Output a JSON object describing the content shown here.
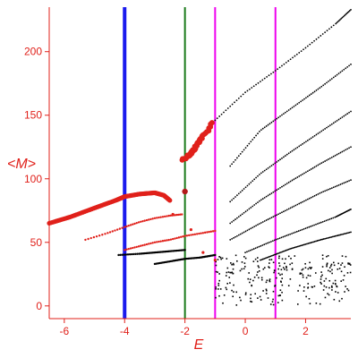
{
  "chart_data": {
    "type": "scatter",
    "title": "",
    "xlabel": "E",
    "ylabel": "<M>",
    "xlim": [
      -6.5,
      3.5
    ],
    "ylim": [
      -10,
      235
    ],
    "x_ticks": [
      -6,
      -4,
      -2,
      0,
      2
    ],
    "y_ticks": [
      0,
      50,
      100,
      150,
      200
    ],
    "x_tick_labels": [
      "-6",
      "-4",
      "-2",
      "0",
      "2"
    ],
    "y_tick_labels": [
      "0",
      "50",
      "100",
      "150",
      "200"
    ],
    "grid": false,
    "legend": "none",
    "colors": {
      "axis": "#e0201a",
      "red_points": "#e0201a",
      "black_points": "#000000",
      "line_blue": "#1a1aee",
      "line_green": "#1a7a1a",
      "line_magenta": "#ee00ee"
    },
    "vertical_lines": [
      {
        "x": -4,
        "color": "#1a1aee",
        "width": "thick"
      },
      {
        "x": -2,
        "color": "#1a7a1a",
        "width": "thin"
      },
      {
        "x": -1,
        "color": "#ee00ee",
        "width": "thin"
      },
      {
        "x": 1,
        "color": "#ee00ee",
        "width": "thin"
      }
    ],
    "series": [
      {
        "color": "#e0201a",
        "style": "large-dots",
        "curve": {
          "x": [
            -6.5,
            -5.8,
            -5.0,
            -4.3,
            -4.0,
            -3.5,
            -3.0,
            -2.7,
            -2.5
          ],
          "y": [
            65,
            70,
            77,
            83,
            86,
            88,
            89,
            87,
            83
          ]
        }
      },
      {
        "color": "#e0201a",
        "style": "dots",
        "curve": {
          "x": [
            -5.3,
            -4.6,
            -4.0,
            -3.5,
            -3.0,
            -2.5,
            -2.1
          ],
          "y": [
            52,
            57,
            62,
            66,
            69,
            71,
            72
          ]
        }
      },
      {
        "color": "#e0201a",
        "style": "dots",
        "curve": {
          "x": [
            -4.0,
            -3.5,
            -3.0,
            -2.5,
            -2.0,
            -1.5,
            -1.0
          ],
          "y": [
            44,
            47,
            50,
            52,
            55,
            57,
            59
          ]
        }
      },
      {
        "color": "#e0201a",
        "style": "cluster",
        "curve": {
          "x": [
            -2.1,
            -1.9,
            -1.8,
            -1.7,
            -1.6,
            -1.5,
            -1.3,
            -1.1
          ],
          "y": [
            115,
            118,
            120,
            123,
            127,
            131,
            136,
            144
          ]
        }
      },
      {
        "color": "#000000",
        "style": "dots",
        "curve": {
          "x": [
            -4.2,
            -3.5,
            -3.0,
            -2.5,
            -2.0
          ],
          "y": [
            40,
            41,
            42,
            43,
            44
          ]
        }
      },
      {
        "color": "#000000",
        "style": "dots",
        "curve": {
          "x": [
            -3.0,
            -2.5,
            -2.0,
            -1.5,
            -1.0
          ],
          "y": [
            33,
            35,
            37,
            38,
            40
          ]
        }
      },
      {
        "color": "#000000",
        "style": "dotted-curve",
        "curve": {
          "x": [
            -1.0,
            0.0,
            1.0,
            2.0,
            3.0,
            3.5
          ],
          "y": [
            146,
            168,
            185,
            203,
            222,
            233
          ]
        }
      },
      {
        "color": "#000000",
        "style": "dotted-curve",
        "curve": {
          "x": [
            -0.5,
            0.5,
            1.5,
            2.5,
            3.5
          ],
          "y": [
            110,
            138,
            155,
            172,
            190
          ]
        }
      },
      {
        "color": "#000000",
        "style": "dotted-curve",
        "curve": {
          "x": [
            -0.5,
            0.5,
            1.5,
            2.5,
            3.5
          ],
          "y": [
            82,
            104,
            121,
            137,
            153
          ]
        }
      },
      {
        "color": "#000000",
        "style": "dotted-curve",
        "curve": {
          "x": [
            -0.5,
            0.5,
            1.5,
            2.5,
            3.5
          ],
          "y": [
            65,
            83,
            98,
            112,
            125
          ]
        }
      },
      {
        "color": "#000000",
        "style": "dotted-curve",
        "curve": {
          "x": [
            -0.5,
            0.5,
            1.5,
            2.5,
            3.5
          ],
          "y": [
            52,
            65,
            77,
            89,
            99
          ]
        }
      },
      {
        "color": "#000000",
        "style": "dotted-curve",
        "curve": {
          "x": [
            0.0,
            1.0,
            2.0,
            3.0,
            3.5
          ],
          "y": [
            42,
            52,
            61,
            70,
            76
          ]
        }
      },
      {
        "color": "#000000",
        "style": "dotted-curve",
        "curve": {
          "x": [
            0.5,
            1.5,
            2.5,
            3.5
          ],
          "y": [
            36,
            45,
            52,
            58
          ]
        }
      },
      {
        "color": "#000000",
        "style": "scatter-band",
        "x_range": [
          -1.0,
          3.5
        ],
        "y_range": [
          0,
          40
        ]
      }
    ]
  }
}
